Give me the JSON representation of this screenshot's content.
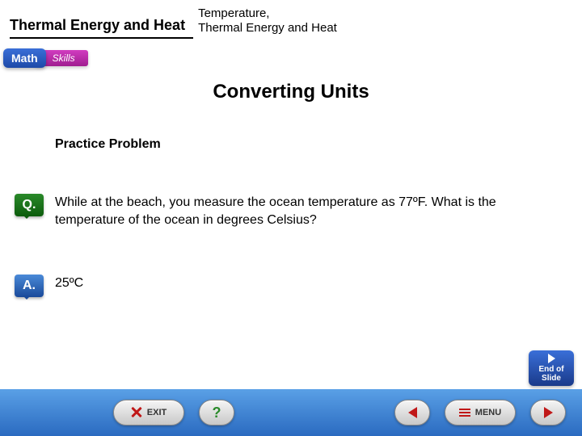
{
  "header": {
    "left": "Thermal Energy and Heat",
    "right_line1": "Temperature,",
    "right_line2": "Thermal Energy and Heat"
  },
  "badges": {
    "math": "Math",
    "skills": "Skills"
  },
  "title": "Converting Units",
  "subtitle": "Practice Problem",
  "question": {
    "icon": "Q.",
    "text": "While at the beach, you measure the ocean temperature as 77ºF. What is the temperature of the ocean in degrees Celsius?"
  },
  "answer": {
    "icon": "A.",
    "text": "25ºC"
  },
  "footer": {
    "exit": "EXIT",
    "help": "?",
    "menu": "MENU"
  },
  "end_slide": {
    "line1": "End of",
    "line2": "Slide"
  }
}
